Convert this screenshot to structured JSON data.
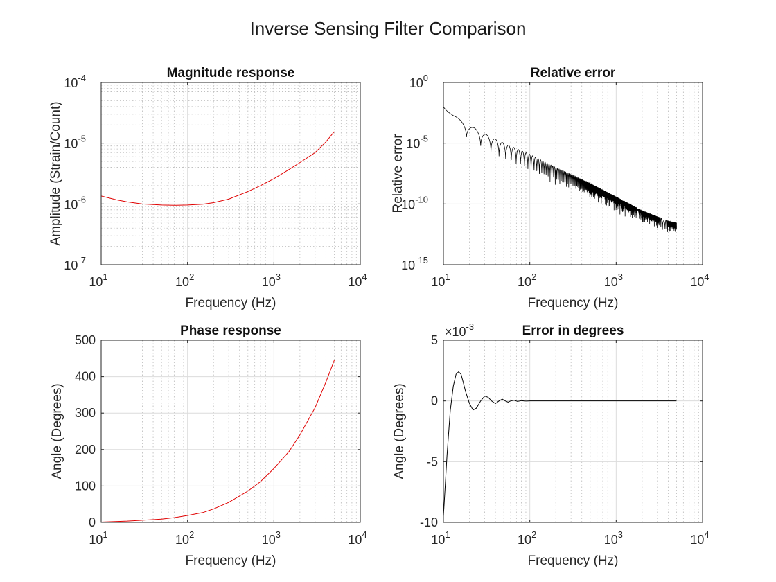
{
  "figure": {
    "title": "Inverse Sensing Filter Comparison"
  },
  "chart_data": [
    {
      "type": "line",
      "title": "Magnitude response",
      "xlabel": "Frequency (Hz)",
      "ylabel": "Amplitude (Strain/Count)",
      "xscale": "log",
      "yscale": "log",
      "xlim": [
        10,
        10000
      ],
      "ylim": [
        1e-07,
        0.0001
      ],
      "grid": true,
      "minor_grid": true,
      "xticks": [
        {
          "base": "10",
          "exp": "1"
        },
        {
          "base": "10",
          "exp": "2"
        },
        {
          "base": "10",
          "exp": "3"
        },
        {
          "base": "10",
          "exp": "4"
        }
      ],
      "yticks": [
        {
          "base": "10",
          "exp": "-7"
        },
        {
          "base": "10",
          "exp": "-6"
        },
        {
          "base": "10",
          "exp": "-5"
        },
        {
          "base": "10",
          "exp": "-4"
        }
      ],
      "series": [
        {
          "color": "#e00000",
          "x": [
            10,
            15,
            20,
            30,
            50,
            70,
            100,
            150,
            200,
            300,
            500,
            700,
            1000,
            1500,
            2000,
            3000,
            4000,
            5000
          ],
          "y": [
            1.35e-06,
            1.17e-06,
            1.08e-06,
            1e-06,
            9.6e-07,
            9.5e-07,
            9.6e-07,
            9.9e-07,
            1.05e-06,
            1.2e-06,
            1.6e-06,
            2e-06,
            2.6e-06,
            3.7e-06,
            4.8e-06,
            7e-06,
            1.05e-05,
            1.55e-05
          ]
        }
      ]
    },
    {
      "type": "line",
      "title": "Relative error",
      "xlabel": "Frequency (Hz)",
      "ylabel": "Relative error",
      "xscale": "log",
      "yscale": "log",
      "xlim": [
        10,
        10000
      ],
      "ylim": [
        1e-15,
        1
      ],
      "grid": true,
      "minor_grid": false,
      "xticks": [
        {
          "base": "10",
          "exp": "1"
        },
        {
          "base": "10",
          "exp": "2"
        },
        {
          "base": "10",
          "exp": "3"
        },
        {
          "base": "10",
          "exp": "4"
        }
      ],
      "yticks": [
        {
          "base": "10",
          "exp": "-15"
        },
        {
          "base": "10",
          "exp": "-10"
        },
        {
          "base": "10",
          "exp": "-5"
        },
        {
          "base": "10",
          "exp": "0"
        }
      ],
      "series": [
        {
          "color": "#000000",
          "oscillating_envelope": {
            "x": [
              10,
              13,
              20,
              30,
              50,
              100,
              200,
              500,
              1000,
              2000,
              4000,
              5000
            ],
            "upper": [
              0.01,
              0.002,
              0.0003,
              6e-05,
              1e-05,
              1.2e-06,
              1e-07,
              5e-09,
              4e-10,
              3e-11,
              4e-12,
              3e-12
            ],
            "lower": [
              0.01,
              0.0003,
              1e-05,
              2e-06,
              3e-07,
              3e-08,
              3e-09,
              1.5e-10,
              1.5e-11,
              1.5e-12,
              3e-13,
              2e-13
            ]
          }
        }
      ]
    },
    {
      "type": "line",
      "title": "Phase response",
      "xlabel": "Frequency (Hz)",
      "ylabel": "Angle (Degrees)",
      "xscale": "log",
      "yscale": "linear",
      "xlim": [
        10,
        10000
      ],
      "ylim": [
        0,
        500
      ],
      "grid": true,
      "minor_grid": false,
      "xticks": [
        {
          "base": "10",
          "exp": "1"
        },
        {
          "base": "10",
          "exp": "2"
        },
        {
          "base": "10",
          "exp": "3"
        },
        {
          "base": "10",
          "exp": "4"
        }
      ],
      "yticks": [
        {
          "label": "0"
        },
        {
          "label": "100"
        },
        {
          "label": "200"
        },
        {
          "label": "300"
        },
        {
          "label": "400"
        },
        {
          "label": "500"
        }
      ],
      "ytick_values": [
        0,
        100,
        200,
        300,
        400,
        500
      ],
      "series": [
        {
          "color": "#e00000",
          "x": [
            10,
            20,
            30,
            50,
            70,
            100,
            150,
            200,
            300,
            500,
            700,
            1000,
            1500,
            2000,
            3000,
            4000,
            5000
          ],
          "y": [
            1,
            3.5,
            6,
            9,
            13,
            19,
            27,
            37,
            55,
            86,
            112,
            148,
            195,
            240,
            315,
            385,
            445
          ]
        }
      ]
    },
    {
      "type": "line",
      "title": "Error in degrees",
      "xlabel": "Frequency (Hz)",
      "ylabel": "Angle (Degrees)",
      "xscale": "log",
      "yscale": "linear",
      "xlim": [
        10,
        10000
      ],
      "ylim": [
        -10,
        5
      ],
      "y_multiplier": {
        "base": "10",
        "exp": "-3"
      },
      "grid": true,
      "minor_grid": false,
      "xticks": [
        {
          "base": "10",
          "exp": "1"
        },
        {
          "base": "10",
          "exp": "2"
        },
        {
          "base": "10",
          "exp": "3"
        },
        {
          "base": "10",
          "exp": "4"
        }
      ],
      "yticks": [
        {
          "label": "-10"
        },
        {
          "label": "-5"
        },
        {
          "label": "0"
        },
        {
          "label": "5"
        }
      ],
      "ytick_values": [
        -10,
        -5,
        0,
        5
      ],
      "series": [
        {
          "color": "#000000",
          "x": [
            10,
            11,
            12,
            13,
            14,
            15,
            16,
            17,
            18,
            20,
            22,
            24,
            25,
            27,
            30,
            33,
            36,
            40,
            44,
            48,
            52,
            56,
            60,
            66,
            72,
            80,
            90,
            100,
            120,
            5000
          ],
          "y": [
            -9.5,
            -4.5,
            -0.8,
            1.2,
            2.2,
            2.4,
            2.2,
            1.5,
            0.8,
            -0.2,
            -0.75,
            -0.6,
            -0.4,
            0.0,
            0.4,
            0.3,
            0.0,
            -0.22,
            0.0,
            0.15,
            0.0,
            -0.1,
            0.0,
            0.06,
            -0.04,
            0.02,
            -0.01,
            0.0,
            0.0,
            0.0
          ]
        }
      ]
    }
  ]
}
